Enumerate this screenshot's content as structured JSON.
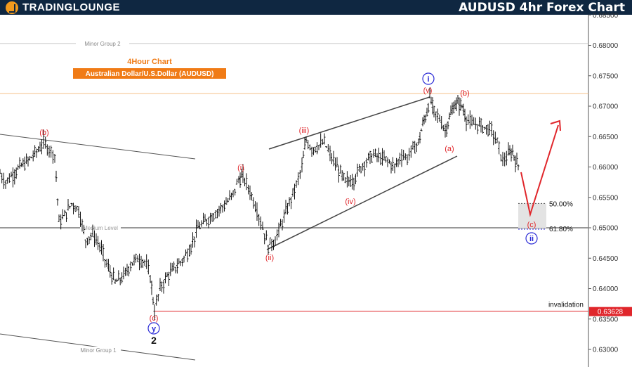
{
  "header": {
    "brand": "TradingLounge",
    "title": "AUDUSD 4hr Forex Chart"
  },
  "subtitle": {
    "line1": "4Hour Chart",
    "line2": "Australian Dollar/U.S.Dollar (AUDUSD)"
  },
  "colors": {
    "header_bg": "#0f2741",
    "accent_orange": "#f07b16",
    "wave_red": "#e0262b",
    "wave_blue": "#2a2ad6",
    "invalidation_red": "#e0262b"
  },
  "chart_data": {
    "type": "candlestick",
    "title": "AUDUSD 4hr Forex Chart",
    "ylim": [
      0.628,
      0.6855
    ],
    "y_ticks": [
      "0.63000",
      "0.63500",
      "0.64000",
      "0.64500",
      "0.65000",
      "0.65500",
      "0.66000",
      "0.66500",
      "0.67000",
      "0.67500",
      "0.68000",
      "0.68500"
    ],
    "y_tick_values": [
      0.63,
      0.635,
      0.64,
      0.645,
      0.65,
      0.655,
      0.66,
      0.665,
      0.67,
      0.675,
      0.68,
      0.685
    ],
    "price_path": [
      [
        0,
        0.659
      ],
      [
        8,
        0.6575
      ],
      [
        16,
        0.6585
      ],
      [
        28,
        0.66
      ],
      [
        40,
        0.661
      ],
      [
        52,
        0.6625
      ],
      [
        62,
        0.664
      ],
      [
        70,
        0.663
      ],
      [
        78,
        0.662
      ],
      [
        84,
        0.651
      ],
      [
        92,
        0.652
      ],
      [
        102,
        0.654
      ],
      [
        112,
        0.653
      ],
      [
        122,
        0.648
      ],
      [
        132,
        0.649
      ],
      [
        142,
        0.647
      ],
      [
        152,
        0.644
      ],
      [
        164,
        0.641
      ],
      [
        176,
        0.642
      ],
      [
        186,
        0.644
      ],
      [
        196,
        0.645
      ],
      [
        206,
        0.6445
      ],
      [
        214,
        0.642
      ],
      [
        220,
        0.6363
      ],
      [
        228,
        0.64
      ],
      [
        238,
        0.642
      ],
      [
        250,
        0.6435
      ],
      [
        262,
        0.645
      ],
      [
        272,
        0.647
      ],
      [
        282,
        0.65
      ],
      [
        292,
        0.651
      ],
      [
        302,
        0.652
      ],
      [
        312,
        0.653
      ],
      [
        322,
        0.654
      ],
      [
        332,
        0.6555
      ],
      [
        340,
        0.658
      ],
      [
        346,
        0.6585
      ],
      [
        356,
        0.656
      ],
      [
        366,
        0.653
      ],
      [
        374,
        0.65
      ],
      [
        382,
        0.647
      ],
      [
        392,
        0.648
      ],
      [
        402,
        0.651
      ],
      [
        412,
        0.654
      ],
      [
        422,
        0.657
      ],
      [
        430,
        0.66
      ],
      [
        436,
        0.6645
      ],
      [
        444,
        0.663
      ],
      [
        454,
        0.6635
      ],
      [
        462,
        0.664
      ],
      [
        470,
        0.662
      ],
      [
        480,
        0.66
      ],
      [
        492,
        0.6575
      ],
      [
        504,
        0.658
      ],
      [
        514,
        0.66
      ],
      [
        522,
        0.661
      ],
      [
        532,
        0.662
      ],
      [
        542,
        0.6615
      ],
      [
        552,
        0.661
      ],
      [
        562,
        0.66
      ],
      [
        572,
        0.662
      ],
      [
        580,
        0.6615
      ],
      [
        588,
        0.663
      ],
      [
        596,
        0.664
      ],
      [
        602,
        0.667
      ],
      [
        608,
        0.669
      ],
      [
        612,
        0.6715
      ],
      [
        618,
        0.669
      ],
      [
        626,
        0.668
      ],
      [
        634,
        0.666
      ],
      [
        640,
        0.668
      ],
      [
        646,
        0.67
      ],
      [
        652,
        0.6705
      ],
      [
        658,
        0.67
      ],
      [
        664,
        0.668
      ],
      [
        672,
        0.667
      ],
      [
        680,
        0.667
      ],
      [
        690,
        0.6665
      ],
      [
        700,
        0.666
      ],
      [
        708,
        0.664
      ],
      [
        716,
        0.661
      ],
      [
        724,
        0.662
      ],
      [
        730,
        0.6625
      ],
      [
        736,
        0.6605
      ],
      [
        740,
        0.66
      ]
    ],
    "level_lines": [
      {
        "label": "Minor Group 2",
        "value": 0.6803
      },
      {
        "label": "Medium Level",
        "value": 0.65
      },
      {
        "label": "invalidation",
        "value": 0.63628,
        "tag": "0.63628"
      }
    ],
    "fib_levels": [
      {
        "label": "50.00%",
        "value": 0.654
      },
      {
        "label": "61.80%",
        "value": 0.65
      }
    ],
    "wave_labels_red": [
      "(b)",
      "(c)",
      "(i)",
      "(ii)",
      "(iii)",
      "(iv)",
      "(v)",
      "(a)",
      "(b)",
      "(c)"
    ],
    "wave_labels_blue": [
      "i",
      "y",
      "ii"
    ],
    "wave_labels_black": [
      "2"
    ],
    "channel_labels": [
      "Minor Group 1"
    ]
  }
}
